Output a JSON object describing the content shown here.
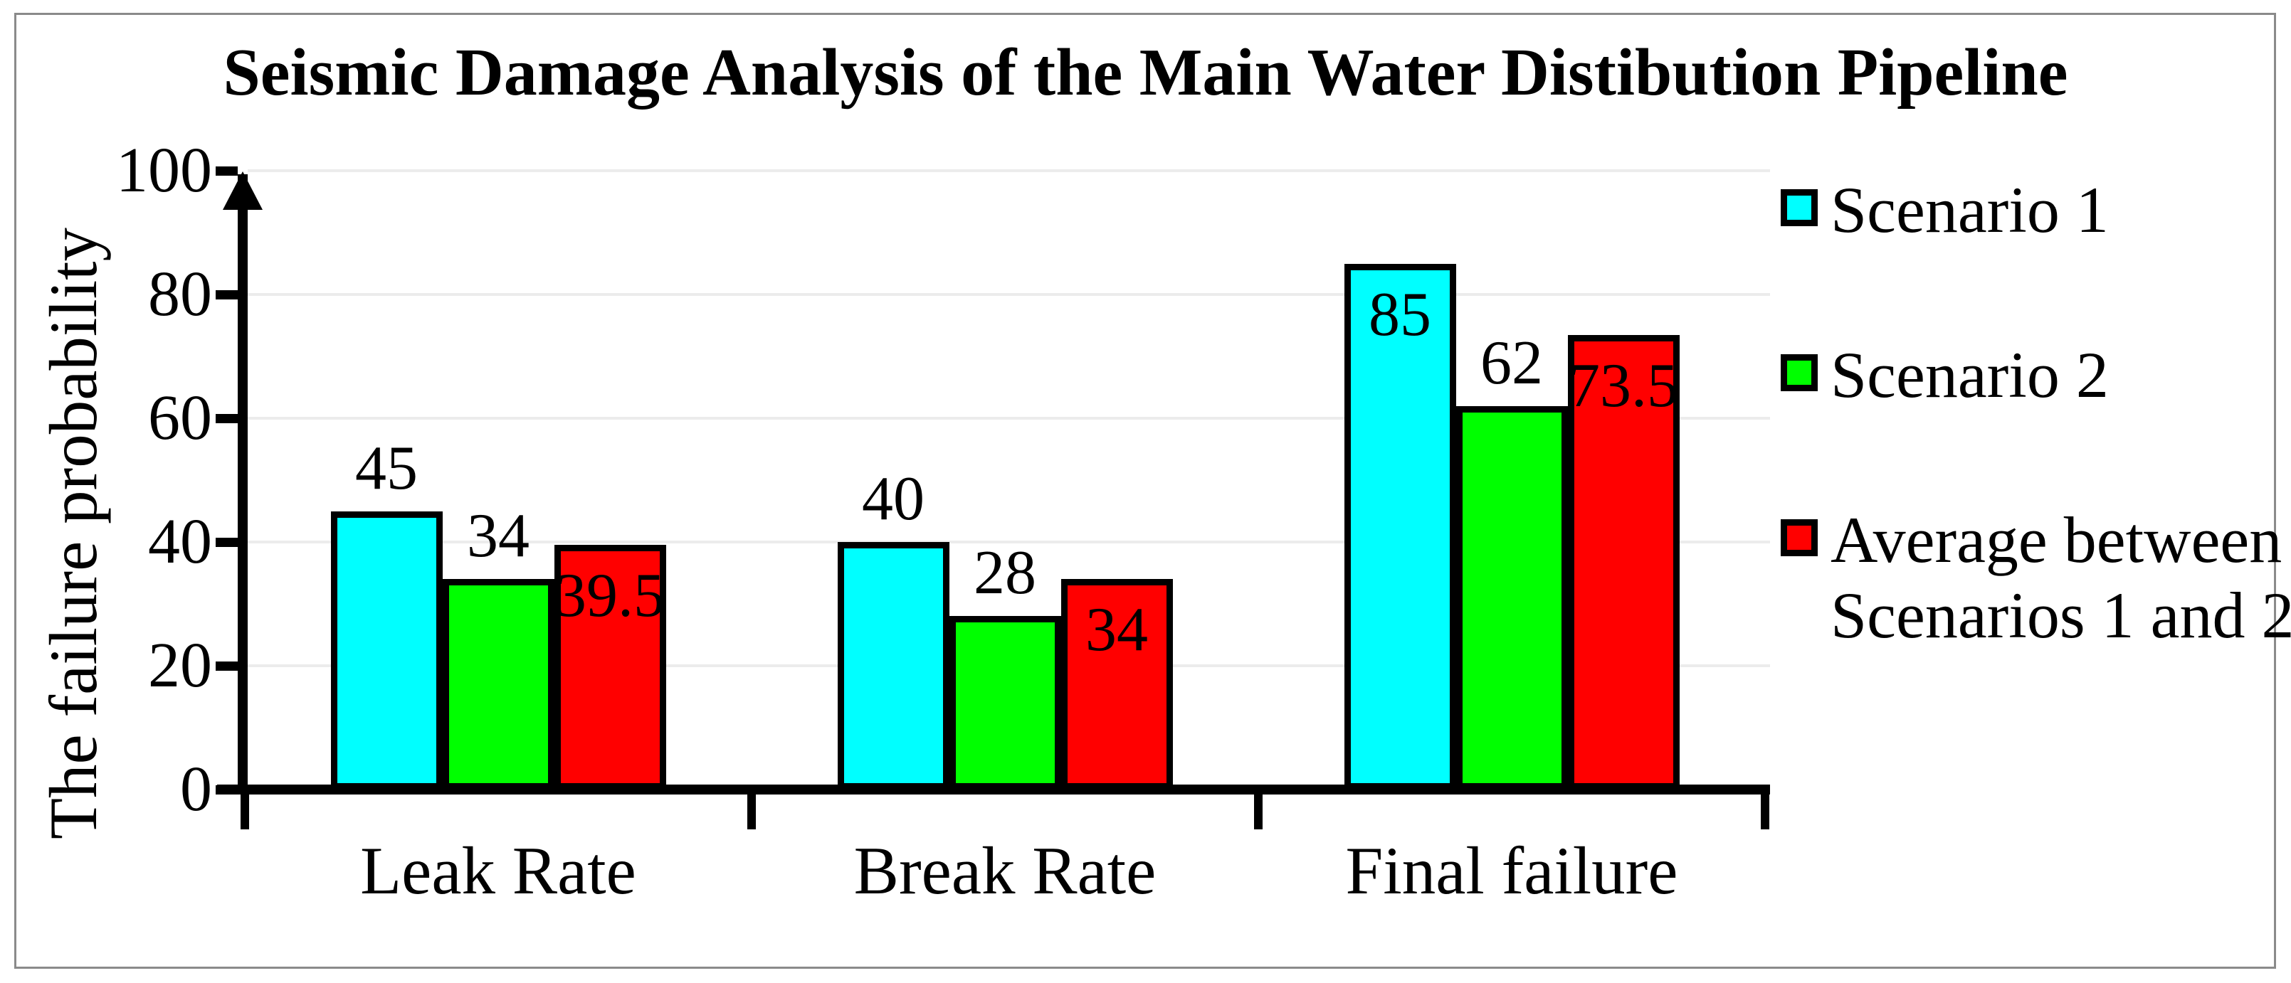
{
  "figure": {
    "border_color": "#8a8a8a",
    "background": "#ffffff"
  },
  "chart_data": {
    "type": "bar",
    "title": "Seismic Damage Analysis of the Main Water Distibution Pipeline",
    "ylabel": "The failure probability",
    "xlabel": "",
    "categories": [
      "Leak Rate",
      "Break Rate",
      "Final failure"
    ],
    "series": [
      {
        "name": "Scenario 1",
        "color": "#00ffff",
        "values": [
          45,
          40,
          85
        ],
        "value_label_inside": [
          false,
          false,
          true
        ]
      },
      {
        "name": "Scenario 2",
        "color": "#00ff00",
        "values": [
          34,
          28,
          62
        ],
        "value_label_inside": [
          false,
          false,
          false
        ]
      },
      {
        "name": "Average between Scenarios 1 and 2",
        "color": "#ff0000",
        "values": [
          39.5,
          34,
          73.5
        ],
        "value_label_inside": [
          true,
          true,
          true
        ]
      }
    ],
    "ylim": [
      0,
      100
    ],
    "yticks": [
      0,
      20,
      40,
      60,
      80,
      100
    ],
    "grid": true,
    "gridline_color": "#ececec",
    "bar_border_color": "#000000",
    "legend_position": "right",
    "legend": [
      {
        "label_lines": [
          "Scenario 1"
        ],
        "color": "#00ffff"
      },
      {
        "label_lines": [
          "Scenario 2"
        ],
        "color": "#00ff00"
      },
      {
        "label_lines": [
          "Average between",
          "Scenarios 1 and 2"
        ],
        "color": "#ff0000"
      }
    ]
  }
}
